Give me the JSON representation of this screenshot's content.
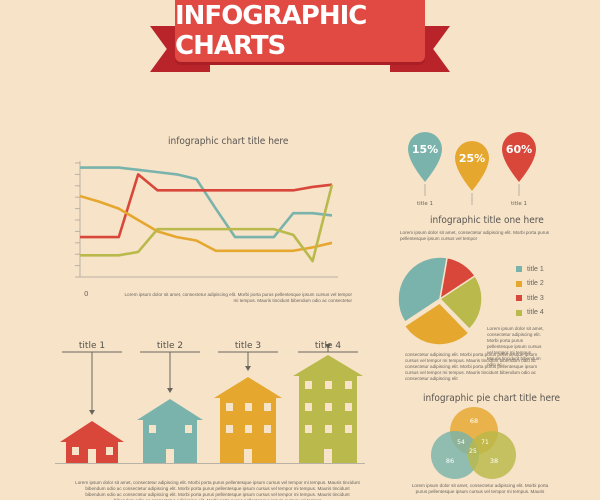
{
  "header": {
    "title": "INFOGRAPHIC CHARTS"
  },
  "colors": {
    "background": "#f6e3c8",
    "red": "#d9463a",
    "teal": "#7ab3ab",
    "orange": "#e6a72f",
    "olive": "#bab94b"
  },
  "chart_data": [
    {
      "type": "line",
      "title": "infographic chart title here",
      "x": [
        0,
        1,
        2,
        3,
        4,
        5,
        6,
        7,
        8,
        9,
        10,
        11,
        12,
        13
      ],
      "xlim": [
        0,
        13
      ],
      "ylim": [
        0,
        10
      ],
      "grid": false,
      "y_ticks": 10,
      "x_tick_label": "0",
      "series": [
        {
          "color": "#7ab3ab",
          "values": [
            9.6,
            9.6,
            9.6,
            9.4,
            9.2,
            9.0,
            8.6,
            6.0,
            3.5,
            3.5,
            3.5,
            5.6,
            5.6,
            5.4
          ]
        },
        {
          "color": "#d9463a",
          "values": [
            3.5,
            3.5,
            3.5,
            9.0,
            7.6,
            7.6,
            7.6,
            7.6,
            7.6,
            7.6,
            7.6,
            7.6,
            7.9,
            8.1
          ]
        },
        {
          "color": "#e6a72f",
          "values": [
            7.1,
            6.6,
            6.0,
            5.0,
            4.0,
            3.5,
            3.2,
            2.3,
            2.3,
            2.3,
            2.3,
            2.3,
            2.6,
            3.0
          ]
        },
        {
          "color": "#bab94b",
          "values": [
            1.9,
            1.9,
            1.9,
            2.2,
            4.2,
            4.2,
            4.2,
            4.2,
            4.2,
            4.2,
            4.2,
            3.7,
            1.4,
            8.1
          ]
        }
      ],
      "description": "Lorem ipsum dolor sit amet, consectetur adipiscing elit. Morbi porta purus pellentesque ipsum cursus vel tempor mi tempus. Mauris tincidunt bibendum odio ac consectetur"
    },
    {
      "type": "bar",
      "categories": [
        "title 1",
        "title 2",
        "title 3",
        "title 4"
      ],
      "values": [
        1,
        2,
        3,
        4
      ],
      "colors": [
        "#d9463a",
        "#7ab3ab",
        "#e6a72f",
        "#bab94b"
      ],
      "description": "Lorem ipsum dolor sit amet, consectetur adipiscing elit. Morbi porta purus pellentesque ipsum cursus vel tempor mi tempus. Mauris tincidunt bibendum odio ac consectetur adipiscing elit. Morbi porta purus pellentesque ipsum cursus vel tempor mi tempus. Mauris tincidunt bibendum odio ac consectetur adipiscing elit. Morbi porta purus pellentesque ipsum cursus vel tempor mi tempus. Mauris tincidunt bibendum odio ac consectetur adipiscing elit. Morbi porta purus pellentesque ipsum cursus vel tempor"
    },
    {
      "type": "pin",
      "title": "infographic title one here",
      "categories": [
        "title 1",
        "title 1",
        "title 1"
      ],
      "values": [
        15,
        25,
        60
      ],
      "labels": [
        "15%",
        "25%",
        "60%"
      ],
      "colors": [
        "#7ab3ab",
        "#e6a72f",
        "#d9463a"
      ],
      "description": "Lorem ipsum dolor sit amet, consectetur adipiscing elit. Morbi porta purus pellentesque ipsum cursus vel tempor"
    },
    {
      "type": "pie",
      "categories": [
        "title 1",
        "title 2",
        "title 3",
        "title 4"
      ],
      "values": [
        37,
        28,
        13,
        22
      ],
      "exploded": [
        "title 2"
      ],
      "colors": [
        "#7ab3ab",
        "#e6a72f",
        "#d9463a",
        "#bab94b"
      ],
      "legend": "right",
      "side_text": "Lorem ipsum dolor sit amet, consectetur adipiscing elit. Morbi porta purus pellentesque ipsum cursus vel tempor mi tempus. Mauris tincidunt bibendum odio ac",
      "description": "consectetur adipiscing elit. Morbi porta purus pellentesque ipsum cursus vel tempor mi tempus. Mauris tincidunt bibendum odio ac consectetur adipiscing elit. Morbi porta purus pellentesque ipsum cursus vel tempor mi tempus. Mauris tincidunt bibendum odio ac consectetur adipiscing elit"
    },
    {
      "type": "venn",
      "title": "infographic pie chart title here",
      "circles": [
        {
          "value": 68,
          "color": "#e6a72f"
        },
        {
          "value": 86,
          "color": "#7ab3ab"
        },
        {
          "value": 38,
          "color": "#bab94b"
        }
      ],
      "intersections": [
        54,
        71,
        25
      ],
      "description": "Lorem ipsum dolor sit amet, consectetur adipiscing elit. Morbi porta purus pellentesque ipsum cursus vel tempor mi tempus. Mauris"
    }
  ]
}
